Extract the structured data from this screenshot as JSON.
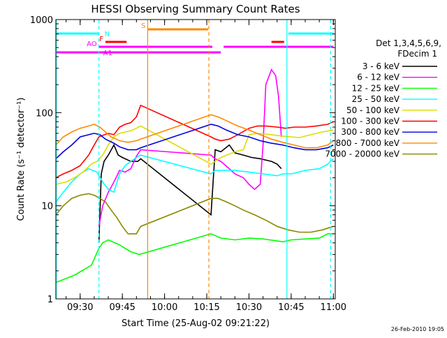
{
  "chart_data": {
    "type": "line",
    "title": "HESSI Observing Summary Count Rates",
    "xlabel": "Start Time (25-Aug-02 09:21:22)",
    "ylabel": "Count Rate (s⁻¹ detector⁻¹)",
    "yscale": "log",
    "ylim": [
      1,
      1000
    ],
    "xlim": [
      "09:21:22",
      "11:00:40"
    ],
    "x_ticks": [
      "09:30",
      "09:45",
      "10:00",
      "10:15",
      "10:30",
      "10:45",
      "11:00"
    ],
    "y_ticks": [
      "1",
      "10",
      "100",
      "1000"
    ],
    "grid": false,
    "legend_position": "right",
    "legend_header": [
      "Det 1,3,4,5,6,9,",
      "FDecim 1"
    ],
    "footer": "26-Feb-2010 19:05",
    "series": [
      {
        "name": "3 - 6 keV",
        "color": "#000000",
        "points": [
          [
            "09:36:40",
            4
          ],
          [
            "09:37:30",
            22
          ],
          [
            "09:38:30",
            30
          ],
          [
            "09:40:00",
            35
          ],
          [
            "09:42:00",
            45
          ],
          [
            "09:43:30",
            35
          ],
          [
            "09:45:00",
            33
          ],
          [
            "09:48:00",
            30
          ],
          [
            "09:50:30",
            30
          ],
          [
            "09:51:30",
            32
          ],
          [
            "10:16:30",
            8
          ],
          [
            "10:18:00",
            40
          ],
          [
            "10:20:00",
            38
          ],
          [
            "10:23:00",
            45
          ],
          [
            "10:25:00",
            37
          ],
          [
            "10:28:00",
            35
          ],
          [
            "10:31:00",
            33
          ],
          [
            "10:34:00",
            32
          ],
          [
            "10:38:00",
            30
          ],
          [
            "10:40:00",
            28
          ],
          [
            "10:41:30",
            25
          ]
        ]
      },
      {
        "name": "6 - 12 keV",
        "color": "#ff00ff",
        "points": [
          [
            "09:36:40",
            6
          ],
          [
            "09:38:00",
            10
          ],
          [
            "09:40:00",
            14
          ],
          [
            "09:42:00",
            18
          ],
          [
            "09:44:00",
            24
          ],
          [
            "09:46:00",
            23
          ],
          [
            "09:48:00",
            25
          ],
          [
            "09:50:00",
            34
          ],
          [
            "09:51:30",
            40
          ],
          [
            "10:16:30",
            35
          ],
          [
            "10:18:00",
            32
          ],
          [
            "10:20:00",
            30
          ],
          [
            "10:23:00",
            25
          ],
          [
            "10:25:00",
            22
          ],
          [
            "10:28:00",
            20
          ],
          [
            "10:30:00",
            17
          ],
          [
            "10:32:00",
            15
          ],
          [
            "10:34:00",
            17
          ],
          [
            "10:35:00",
            45
          ],
          [
            "10:36:00",
            200
          ],
          [
            "10:38:00",
            290
          ],
          [
            "10:39:30",
            250
          ],
          [
            "10:40:30",
            150
          ],
          [
            "10:41:30",
            55
          ]
        ]
      },
      {
        "name": "12 - 25 keV",
        "color": "#00ff00",
        "points": [
          [
            "09:21:22",
            1.5
          ],
          [
            "09:28:00",
            1.8
          ],
          [
            "09:34:00",
            2.3
          ],
          [
            "09:36:40",
            3.5
          ],
          [
            "09:38:00",
            4
          ],
          [
            "09:40:00",
            4.3
          ],
          [
            "09:44:00",
            3.8
          ],
          [
            "09:48:00",
            3.2
          ],
          [
            "09:51:00",
            3
          ],
          [
            "10:16:30",
            5
          ],
          [
            "10:20:00",
            4.5
          ],
          [
            "10:25:00",
            4.3
          ],
          [
            "10:30:00",
            4.5
          ],
          [
            "10:35:00",
            4.4
          ],
          [
            "10:40:00",
            4.2
          ],
          [
            "10:42:00",
            4.1
          ],
          [
            "10:45:00",
            4.3
          ],
          [
            "10:50:00",
            4.4
          ],
          [
            "10:55:00",
            4.5
          ],
          [
            "10:58:00",
            5
          ],
          [
            "11:00:00",
            5
          ]
        ]
      },
      {
        "name": "25 - 50 keV",
        "color": "#00ffff",
        "points": [
          [
            "09:21:22",
            11
          ],
          [
            "09:24:00",
            14
          ],
          [
            "09:27:00",
            18
          ],
          [
            "09:30:00",
            22
          ],
          [
            "09:33:00",
            25
          ],
          [
            "09:36:00",
            23
          ],
          [
            "09:38:00",
            18
          ],
          [
            "09:40:00",
            15
          ],
          [
            "09:42:00",
            14
          ],
          [
            "09:44:00",
            22
          ],
          [
            "09:46:00",
            27
          ],
          [
            "09:48:00",
            30
          ],
          [
            "09:50:00",
            33
          ],
          [
            "09:51:30",
            35
          ],
          [
            "10:16:30",
            22
          ],
          [
            "10:18:00",
            24
          ],
          [
            "10:20:00",
            24
          ],
          [
            "10:25:00",
            24
          ],
          [
            "10:30:00",
            23
          ],
          [
            "10:35:00",
            22
          ],
          [
            "10:40:00",
            21
          ],
          [
            "10:42:00",
            22
          ],
          [
            "10:45:00",
            22
          ],
          [
            "10:50:00",
            24
          ],
          [
            "10:55:00",
            25
          ],
          [
            "10:58:00",
            28
          ],
          [
            "11:00:00",
            32
          ]
        ]
      },
      {
        "name": "50 - 100 keV",
        "color": "#dddd00",
        "points": [
          [
            "09:21:22",
            17
          ],
          [
            "09:25:00",
            18
          ],
          [
            "09:28:00",
            20
          ],
          [
            "09:31:00",
            23
          ],
          [
            "09:34:00",
            28
          ],
          [
            "09:36:00",
            30
          ],
          [
            "09:38:00",
            35
          ],
          [
            "09:40:00",
            45
          ],
          [
            "09:42:00",
            55
          ],
          [
            "09:44:00",
            60
          ],
          [
            "09:46:00",
            62
          ],
          [
            "09:48:00",
            64
          ],
          [
            "09:50:00",
            68
          ],
          [
            "09:51:30",
            72
          ],
          [
            "10:16:30",
            28
          ],
          [
            "10:18:00",
            30
          ],
          [
            "10:20:00",
            33
          ],
          [
            "10:25:00",
            38
          ],
          [
            "10:28:00",
            40
          ],
          [
            "10:30:00",
            58
          ],
          [
            "10:33:00",
            60
          ],
          [
            "10:38:00",
            58
          ],
          [
            "10:42:00",
            56
          ],
          [
            "10:45:00",
            55
          ],
          [
            "10:48:00",
            54
          ],
          [
            "10:52:00",
            58
          ],
          [
            "10:56:00",
            62
          ],
          [
            "11:00:00",
            65
          ]
        ]
      },
      {
        "name": "100 - 300 keV",
        "color": "#ff0000",
        "points": [
          [
            "09:21:22",
            20
          ],
          [
            "09:24:00",
            22
          ],
          [
            "09:27:00",
            24
          ],
          [
            "09:30:00",
            27
          ],
          [
            "09:33:00",
            35
          ],
          [
            "09:35:00",
            45
          ],
          [
            "09:36:40",
            55
          ],
          [
            "09:38:00",
            57
          ],
          [
            "09:40:00",
            60
          ],
          [
            "09:42:00",
            58
          ],
          [
            "09:44:00",
            70
          ],
          [
            "09:46:00",
            75
          ],
          [
            "09:48:00",
            78
          ],
          [
            "09:50:00",
            90
          ],
          [
            "09:51:30",
            120
          ],
          [
            "10:16:30",
            55
          ],
          [
            "10:18:00",
            52
          ],
          [
            "10:20:00",
            50
          ],
          [
            "10:23:00",
            52
          ],
          [
            "10:26:00",
            58
          ],
          [
            "10:30:00",
            68
          ],
          [
            "10:33:00",
            72
          ],
          [
            "10:36:00",
            72
          ],
          [
            "10:40:00",
            70
          ],
          [
            "10:43:00",
            68
          ],
          [
            "10:46:00",
            70
          ],
          [
            "10:50:00",
            70
          ],
          [
            "10:54:00",
            72
          ],
          [
            "10:58:00",
            75
          ],
          [
            "11:00:00",
            80
          ]
        ]
      },
      {
        "name": "300 - 800 keV",
        "color": "#0000dd",
        "points": [
          [
            "09:21:22",
            32
          ],
          [
            "09:24:00",
            38
          ],
          [
            "09:27:00",
            45
          ],
          [
            "09:30:00",
            55
          ],
          [
            "09:33:00",
            58
          ],
          [
            "09:35:00",
            60
          ],
          [
            "09:37:00",
            58
          ],
          [
            "09:39:00",
            52
          ],
          [
            "09:42:00",
            47
          ],
          [
            "09:44:00",
            43
          ],
          [
            "09:47:00",
            40
          ],
          [
            "09:50:00",
            40
          ],
          [
            "09:51:30",
            42
          ],
          [
            "10:16:30",
            75
          ],
          [
            "10:19:00",
            72
          ],
          [
            "10:22:00",
            65
          ],
          [
            "10:26:00",
            58
          ],
          [
            "10:30:00",
            55
          ],
          [
            "10:34:00",
            50
          ],
          [
            "10:38:00",
            47
          ],
          [
            "10:42:00",
            45
          ],
          [
            "10:46:00",
            42
          ],
          [
            "10:50:00",
            40
          ],
          [
            "10:54:00",
            40
          ],
          [
            "10:58:00",
            42
          ],
          [
            "11:00:00",
            45
          ]
        ]
      },
      {
        "name": "800 - 7000 keV",
        "color": "#ff8800",
        "points": [
          [
            "09:21:22",
            45
          ],
          [
            "09:24:00",
            55
          ],
          [
            "09:27:00",
            62
          ],
          [
            "09:30:00",
            68
          ],
          [
            "09:33:00",
            72
          ],
          [
            "09:35:00",
            75
          ],
          [
            "09:37:00",
            70
          ],
          [
            "09:39:00",
            62
          ],
          [
            "09:41:00",
            55
          ],
          [
            "09:44:00",
            50
          ],
          [
            "09:47:00",
            48
          ],
          [
            "09:50:00",
            50
          ],
          [
            "09:51:30",
            52
          ],
          [
            "10:16:30",
            95
          ],
          [
            "10:19:00",
            90
          ],
          [
            "10:22:00",
            82
          ],
          [
            "10:26:00",
            72
          ],
          [
            "10:30:00",
            65
          ],
          [
            "10:34:00",
            58
          ],
          [
            "10:38:00",
            52
          ],
          [
            "10:42:00",
            48
          ],
          [
            "10:46:00",
            45
          ],
          [
            "10:50:00",
            42
          ],
          [
            "10:54:00",
            42
          ],
          [
            "10:58:00",
            45
          ],
          [
            "11:00:00",
            50
          ]
        ]
      },
      {
        "name": "7000 - 20000 keV",
        "color": "#888800",
        "points": [
          [
            "09:21:22",
            8
          ],
          [
            "09:24:00",
            10
          ],
          [
            "09:27:00",
            12
          ],
          [
            "09:30:00",
            13
          ],
          [
            "09:33:00",
            13.5
          ],
          [
            "09:35:00",
            13
          ],
          [
            "09:37:00",
            12
          ],
          [
            "09:39:00",
            11
          ],
          [
            "09:41:00",
            9
          ],
          [
            "09:43:00",
            7.5
          ],
          [
            "09:45:00",
            6
          ],
          [
            "09:47:00",
            5
          ],
          [
            "09:50:00",
            5
          ],
          [
            "09:51:30",
            6
          ],
          [
            "10:16:30",
            12
          ],
          [
            "10:19:00",
            12
          ],
          [
            "10:22:00",
            11
          ],
          [
            "10:25:00",
            10
          ],
          [
            "10:28:00",
            9
          ],
          [
            "10:32:00",
            8
          ],
          [
            "10:36:00",
            7
          ],
          [
            "10:40:00",
            6
          ],
          [
            "10:44:00",
            5.5
          ],
          [
            "10:48:00",
            5.2
          ],
          [
            "10:52:00",
            5.2
          ],
          [
            "10:56:00",
            5.5
          ],
          [
            "11:00:00",
            6
          ]
        ]
      }
    ],
    "status_flags": [
      {
        "label": "N",
        "color": "#00ffff",
        "intervals": [
          [
            "09:21:22",
            "09:36:40"
          ],
          [
            "10:44:00",
            "11:00:00"
          ]
        ]
      },
      {
        "label": "F",
        "color": "#ff0000",
        "intervals": [
          [
            "09:39:00",
            "09:46:30"
          ],
          [
            "10:38:00",
            "10:42:30"
          ]
        ]
      },
      {
        "label": "S",
        "color": "#ff8800",
        "intervals": [
          [
            "09:54:00",
            "10:15:30"
          ]
        ]
      },
      {
        "label": "AO",
        "color": "#ff00ff",
        "intervals": [
          [
            "09:36:40",
            "10:17:00"
          ],
          [
            "10:21:00",
            "11:00:00"
          ]
        ]
      },
      {
        "label": "A1",
        "color": "#ff00ff",
        "intervals": [
          [
            "09:21:22",
            "10:17:00"
          ],
          [
            "10:17:00",
            "10:20:00"
          ]
        ]
      }
    ],
    "vertical_lines": [
      {
        "time": "09:21:30",
        "color": "#00ffff",
        "style": "solid"
      },
      {
        "time": "09:36:40",
        "color": "#00ffff",
        "style": "dashed"
      },
      {
        "time": "09:54:00",
        "color": "#ff8800",
        "style": "solid"
      },
      {
        "time": "10:15:45",
        "color": "#ff8800",
        "style": "dashed"
      },
      {
        "time": "10:43:30",
        "color": "#00ffff",
        "style": "solid"
      },
      {
        "time": "10:59:00",
        "color": "#00ffff",
        "style": "dashed"
      }
    ]
  }
}
